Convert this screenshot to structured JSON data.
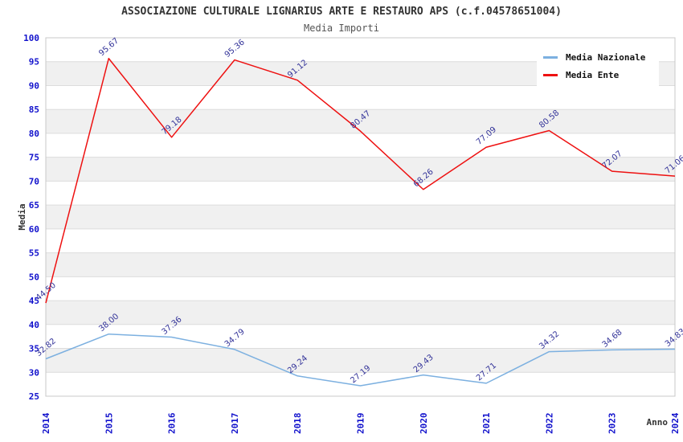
{
  "header": {
    "title": "ASSOCIAZIONE CULTURALE LIGNARIUS ARTE E RESTAURO APS (c.f.04578651004)",
    "subtitle": "Media Importi"
  },
  "axes": {
    "y_label": "Media",
    "x_label": "Anno"
  },
  "colors": {
    "tick_label": "#1111cc",
    "data_label": "#333399",
    "band_fill": "#f0f0f0",
    "gridline": "#dcdcdc",
    "plot_border": "#c8c8c8",
    "axis_title": "#333333",
    "series_nazionale": "#7cb0e0",
    "series_ente": "#ee1111"
  },
  "chart_data": {
    "type": "line",
    "title": "ASSOCIAZIONE CULTURALE LIGNARIUS ARTE E RESTAURO APS (c.f.04578651004)",
    "subtitle": "Media Importi",
    "xlabel": "Anno",
    "ylabel": "Media",
    "categories": [
      "2014",
      "2015",
      "2016",
      "2017",
      "2018",
      "2019",
      "2020",
      "2021",
      "2022",
      "2023",
      "2024"
    ],
    "series": [
      {
        "name": "Media Nazionale",
        "color": "#7cb0e0",
        "values": [
          32.82,
          38.0,
          37.36,
          34.79,
          29.24,
          27.19,
          29.43,
          27.71,
          34.32,
          34.68,
          34.83
        ],
        "labels": [
          "32.82",
          "38.00",
          "37.36",
          "34.79",
          "29.24",
          "27.19",
          "29.43",
          "27.71",
          "34.32",
          "34.68",
          "34.83"
        ]
      },
      {
        "name": "Media Ente",
        "color": "#ee1111",
        "values": [
          44.5,
          95.67,
          79.18,
          95.36,
          91.12,
          80.47,
          68.26,
          77.09,
          80.58,
          72.07,
          71.06
        ],
        "labels": [
          "44.50",
          "95.67",
          "79.18",
          "95.36",
          "91.12",
          "80.47",
          "68.26",
          "77.09",
          "80.58",
          "72.07",
          "71.06"
        ]
      }
    ],
    "ylim": [
      25,
      100
    ],
    "ytick_step": 5,
    "grid": "horizontal",
    "alternating_bands": true,
    "legend_position": "top-right",
    "data_labels_rotation_deg": -40,
    "xtick_rotation_deg": -90
  }
}
